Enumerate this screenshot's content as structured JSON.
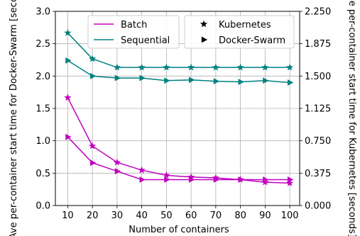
{
  "chart_data": {
    "type": "line",
    "x": [
      10,
      20,
      30,
      40,
      50,
      60,
      70,
      80,
      90,
      100
    ],
    "xlabel": "Number of containers",
    "ylabel_left": "Ave per-container start time for Docker-Swarm [seconds]",
    "ylabel_right": "Ave per-container start time for Kubernetes [seconds]",
    "xlim": [
      5,
      104
    ],
    "ylim_left": [
      0,
      3.0
    ],
    "ylim_right": [
      0,
      2.25
    ],
    "left_ticks": [
      "0.0",
      "0.5",
      "1.0",
      "1.5",
      "2.0",
      "2.5",
      "3.0"
    ],
    "right_ticks": [
      "0.000",
      "0.375",
      "0.750",
      "1.125",
      "1.500",
      "1.875",
      "2.250"
    ],
    "grid": true,
    "legend_mode": {
      "placement": "top-center",
      "entries": [
        {
          "label": "Batch",
          "color": "#c000c0"
        },
        {
          "label": "Sequential",
          "color": "#008080"
        }
      ]
    },
    "legend_platform": {
      "placement": "top-right",
      "entries": [
        {
          "label": "Kubernetes",
          "marker": "star"
        },
        {
          "label": "Docker-Swarm",
          "marker": "triangle-right"
        }
      ]
    },
    "series": [
      {
        "mode": "Batch",
        "platform": "Kubernetes",
        "axis": "right",
        "color": "#c000c0",
        "marker": "star",
        "values": [
          1.25,
          0.69,
          0.5,
          0.41,
          0.35,
          0.33,
          0.32,
          0.3,
          0.27,
          0.26
        ]
      },
      {
        "mode": "Batch",
        "platform": "Docker-Swarm",
        "axis": "left",
        "color": "#c000c0",
        "marker": "triangle-right",
        "values": [
          1.06,
          0.66,
          0.53,
          0.4,
          0.4,
          0.4,
          0.4,
          0.4,
          0.4,
          0.4
        ]
      },
      {
        "mode": "Sequential",
        "platform": "Kubernetes",
        "axis": "right",
        "color": "#008080",
        "marker": "star",
        "values": [
          2.0,
          1.7,
          1.6,
          1.6,
          1.6,
          1.6,
          1.6,
          1.6,
          1.6,
          1.6
        ]
      },
      {
        "mode": "Sequential",
        "platform": "Docker-Swarm",
        "axis": "left",
        "color": "#008080",
        "marker": "triangle-right",
        "values": [
          2.24,
          2.0,
          1.97,
          1.97,
          1.93,
          1.94,
          1.92,
          1.91,
          1.93,
          1.9
        ]
      }
    ]
  }
}
